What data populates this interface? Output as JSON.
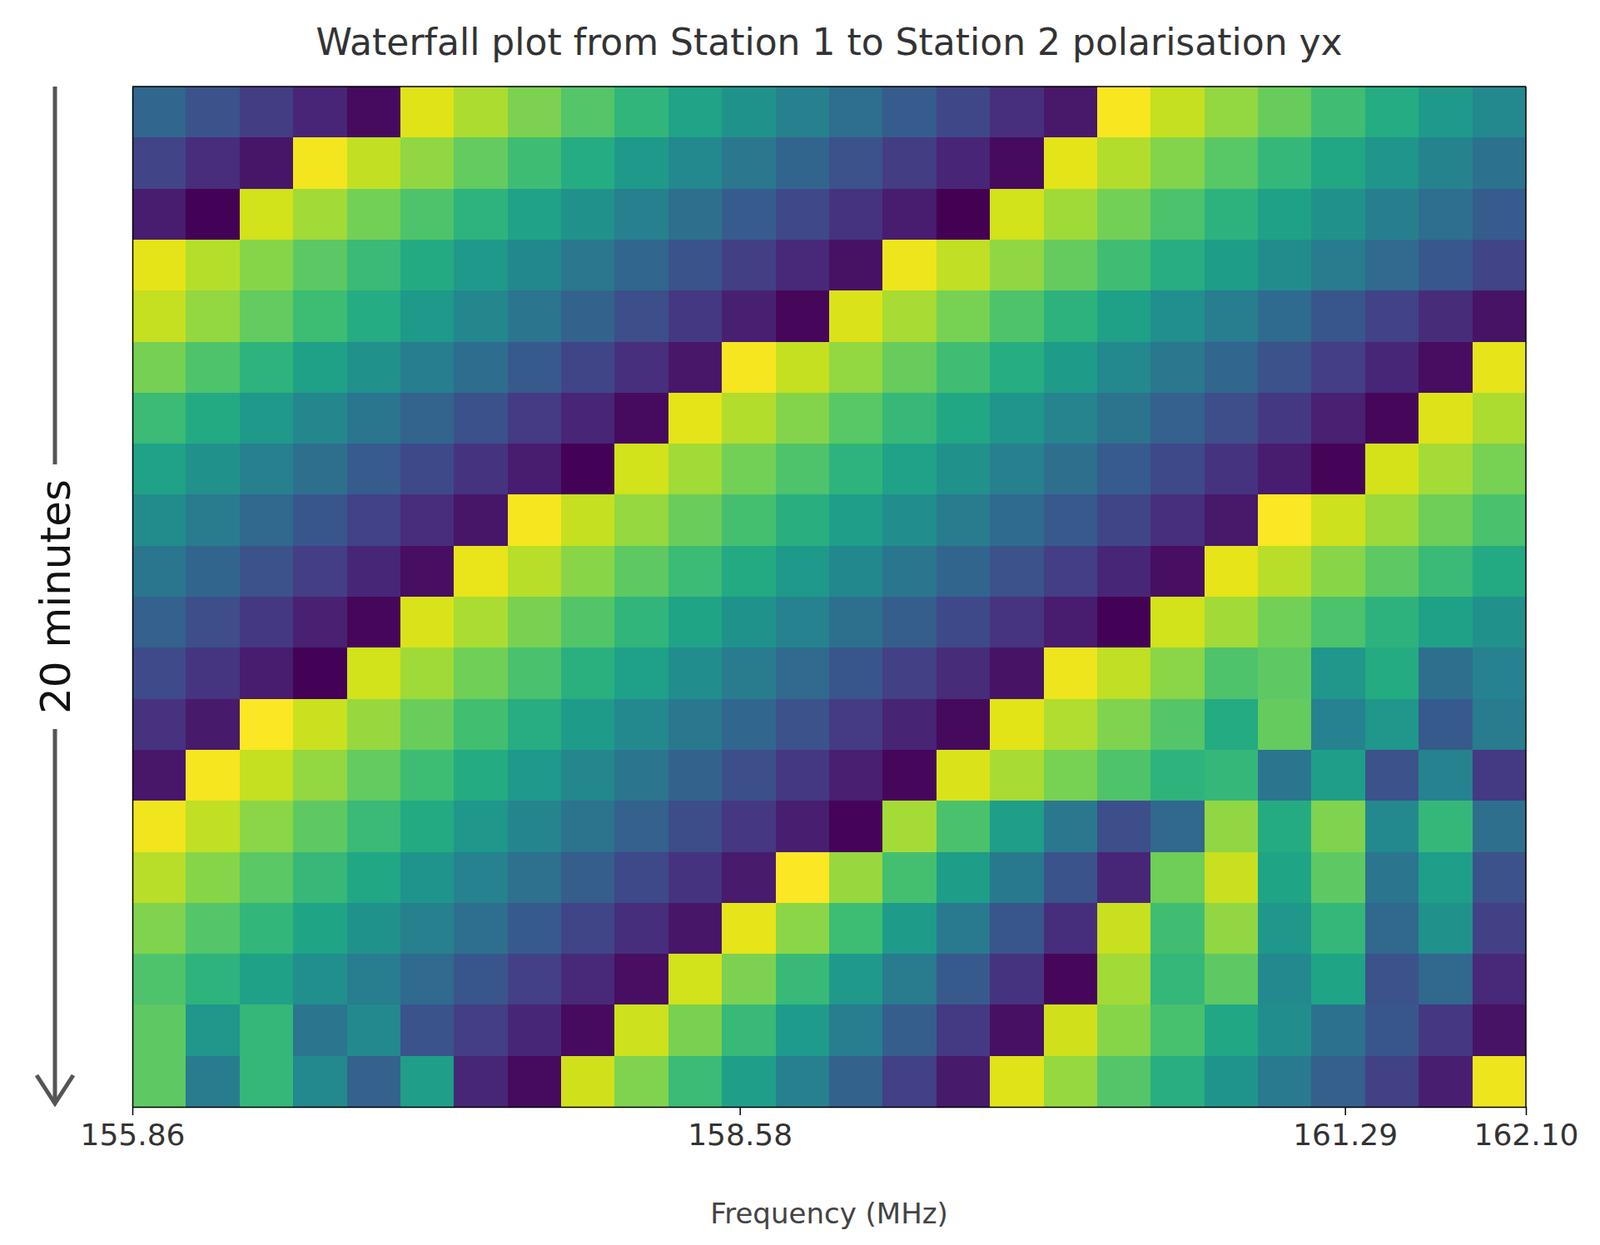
{
  "chart_data": {
    "type": "heatmap",
    "title": "Waterfall plot from Station 1 to Station 2 polarisation yx",
    "xlabel": "Frequency (MHz)",
    "ylabel": "20 minutes",
    "xlim": [
      155.86,
      162.1
    ],
    "xticks": [
      155.86,
      158.58,
      161.29,
      {
        "value": 162.1,
        "label": "162.10"
      }
    ],
    "ylim": [
      0,
      20
    ],
    "tick_labels": "x",
    "color": "viridis",
    "color_range": [
      -180,
      180
    ],
    "cells": [
      [
        -63,
        -90,
        -116,
        -143,
        -170,
        163,
        136,
        109,
        83,
        56,
        29,
        3,
        -24,
        -51,
        -77,
        -104,
        -131,
        -157,
        176,
        149,
        122,
        96,
        69,
        42,
        15,
        -11
      ],
      [
        -108,
        -134,
        -160,
        173,
        147,
        120,
        94,
        68,
        42,
        15,
        -11,
        -37,
        -64,
        -90,
        -116,
        -143,
        -169,
        165,
        139,
        113,
        86,
        60,
        34,
        8,
        -19,
        -45
      ],
      [
        -152,
        -178,
        156,
        130,
        104,
        79,
        53,
        27,
        1,
        -24,
        -50,
        -76,
        -102,
        -127,
        -153,
        -179,
        155,
        129,
        104,
        78,
        52,
        26,
        0,
        -26,
        -51,
        -77
      ],
      [
        165,
        140,
        115,
        89,
        64,
        39,
        13,
        -12,
        -37,
        -63,
        -88,
        -113,
        -139,
        -164,
        171,
        145,
        120,
        95,
        70,
        44,
        19,
        -6,
        -32,
        -57,
        -82,
        -108
      ],
      [
        148,
        121,
        94,
        67,
        41,
        14,
        -13,
        -40,
        -67,
        -94,
        -121,
        -148,
        -174,
        159,
        133,
        106,
        79,
        52,
        25,
        -2,
        -29,
        -56,
        -83,
        -109,
        -136,
        -163
      ],
      [
        105,
        79,
        53,
        26,
        0,
        -27,
        -53,
        -79,
        -106,
        -132,
        -158,
        175,
        149,
        122,
        96,
        70,
        43,
        17,
        -10,
        -36,
        -62,
        -89,
        -115,
        -141,
        -168,
        166
      ],
      [
        65,
        39,
        13,
        -13,
        -39,
        -65,
        -91,
        -117,
        -143,
        -169,
        165,
        139,
        113,
        87,
        61,
        35,
        9,
        -17,
        -43,
        -69,
        -95,
        -121,
        -147,
        -173,
        161,
        135
      ],
      [
        27,
        1,
        -24,
        -50,
        -76,
        -101,
        -127,
        -152,
        -178,
        156,
        130,
        104,
        79,
        53,
        27,
        1,
        -24,
        -50,
        -76,
        -101,
        -127,
        -153,
        -177,
        157,
        131,
        106
      ],
      [
        -7,
        -32,
        -58,
        -83,
        -109,
        -134,
        -160,
        175,
        149,
        123,
        98,
        72,
        47,
        21,
        -4,
        -30,
        -55,
        -81,
        -106,
        -132,
        -157,
        178,
        152,
        127,
        101,
        76
      ],
      [
        -38,
        -64,
        -90,
        -115,
        -141,
        -167,
        168,
        142,
        116,
        91,
        65,
        39,
        13,
        -12,
        -38,
        -64,
        -90,
        -115,
        -141,
        -167,
        167,
        142,
        116,
        90,
        64,
        39
      ],
      [
        -69,
        -95,
        -121,
        -147,
        -173,
        160,
        134,
        108,
        82,
        56,
        30,
        4,
        -22,
        -48,
        -74,
        -100,
        -126,
        -152,
        -178,
        156,
        130,
        104,
        78,
        52,
        26,
        0
      ],
      [
        -99,
        -125,
        -152,
        -178,
        155,
        129,
        102,
        76,
        49,
        23,
        -4,
        -30,
        -57,
        -83,
        -110,
        -136,
        -163,
        171,
        145,
        118,
        80,
        90,
        10,
        40,
        -50,
        -20
      ],
      [
        -128,
        -155,
        178,
        151,
        124,
        98,
        71,
        44,
        17,
        -10,
        -36,
        -63,
        -90,
        -117,
        -144,
        -171,
        164,
        137,
        110,
        84,
        40,
        95,
        -20,
        10,
        -80,
        -30
      ],
      [
        -158,
        175,
        148,
        121,
        94,
        67,
        40,
        14,
        -13,
        -40,
        -67,
        -94,
        -121,
        -148,
        -174,
        160,
        133,
        106,
        79,
        53,
        60,
        -40,
        20,
        -90,
        -20,
        -120
      ],
      [
        172,
        145,
        118,
        91,
        64,
        38,
        11,
        -16,
        -43,
        -70,
        -97,
        -123,
        -150,
        -177,
        132,
        76,
        20,
        -36,
        -93,
        -60,
        120,
        40,
        110,
        -10,
        60,
        -50
      ],
      [
        142,
        115,
        88,
        61,
        34,
        7,
        -20,
        -47,
        -74,
        -100,
        -127,
        -154,
        178,
        125,
        72,
        19,
        -35,
        -88,
        -141,
        100,
        150,
        30,
        90,
        -40,
        20,
        -90
      ],
      [
        111,
        84,
        57,
        30,
        3,
        -24,
        -52,
        -79,
        -106,
        -133,
        -160,
        167,
        117,
        67,
        17,
        -33,
        -83,
        -133,
        150,
        70,
        120,
        10,
        60,
        -60,
        0,
        -110
      ],
      [
        80,
        53,
        25,
        -2,
        -29,
        -57,
        -84,
        -112,
        -139,
        -166,
        156,
        109,
        62,
        15,
        -32,
        -80,
        -127,
        -174,
        130,
        60,
        90,
        -10,
        30,
        -90,
        -60,
        -140
      ],
      [
        90,
        10,
        60,
        -40,
        -10,
        -88,
        -115,
        -142,
        -170,
        152,
        107,
        62,
        16,
        -29,
        -74,
        -120,
        -165,
        154,
        114,
        75,
        35,
        -4,
        -44,
        -83,
        -123,
        -162
      ],
      [
        90,
        -30,
        60,
        -10,
        -70,
        20,
        -142,
        -169,
        154,
        110,
        65,
        21,
        -24,
        -68,
        -112,
        -156,
        162,
        123,
        84,
        45,
        6,
        -33,
        -72,
        -111,
        -150,
        171
      ]
    ]
  }
}
